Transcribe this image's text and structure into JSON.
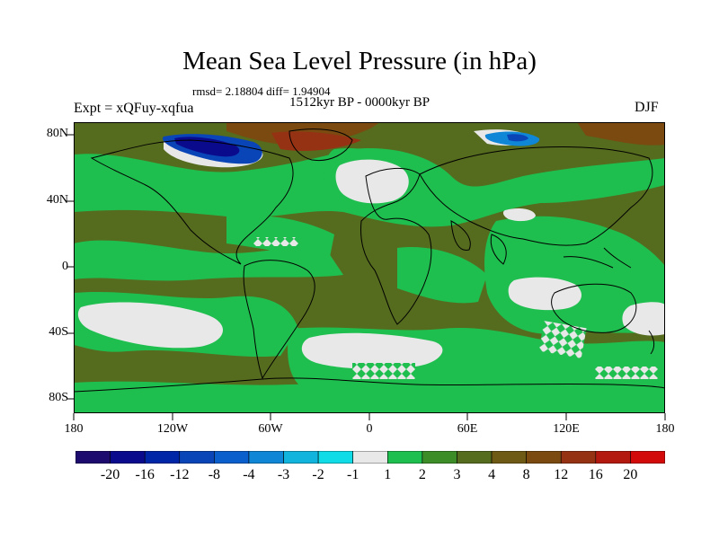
{
  "title": "Mean Sea Level Pressure (in hPa)",
  "stats": "rmsd= 2.18804  diff= 1.94904",
  "period": "1512kyr BP - 0000kyr BP",
  "experiment": "Expt = xQFuy-xqfua",
  "season": "DJF",
  "lat_labels": [
    "80N",
    "40N",
    "0",
    "40S",
    "80S"
  ],
  "lon_labels": [
    "180",
    "120W",
    "60W",
    "0",
    "60E",
    "120E",
    "180"
  ],
  "colorbar": {
    "colors": [
      "#1e0b6e",
      "#0a0a8c",
      "#0026a8",
      "#0a45b8",
      "#0a5fcc",
      "#0f86d6",
      "#10b4dc",
      "#0fdce6",
      "#e8e8e8",
      "#1fbf4f",
      "#3c8c28",
      "#556b1e",
      "#6e5a14",
      "#7a4a10",
      "#963214",
      "#b4190f",
      "#d20a0a"
    ],
    "labels": [
      "-20",
      "-16",
      "-12",
      "-8",
      "-4",
      "-3",
      "-2",
      "-1",
      "1",
      "2",
      "3",
      "4",
      "8",
      "12",
      "16",
      "20"
    ]
  },
  "colors": {
    "base": "#556b1e",
    "green": "#1fbf4f",
    "darkgreen": "#3c8c28",
    "gray": "#e8e8e8",
    "brown": "#7a4a10"
  }
}
